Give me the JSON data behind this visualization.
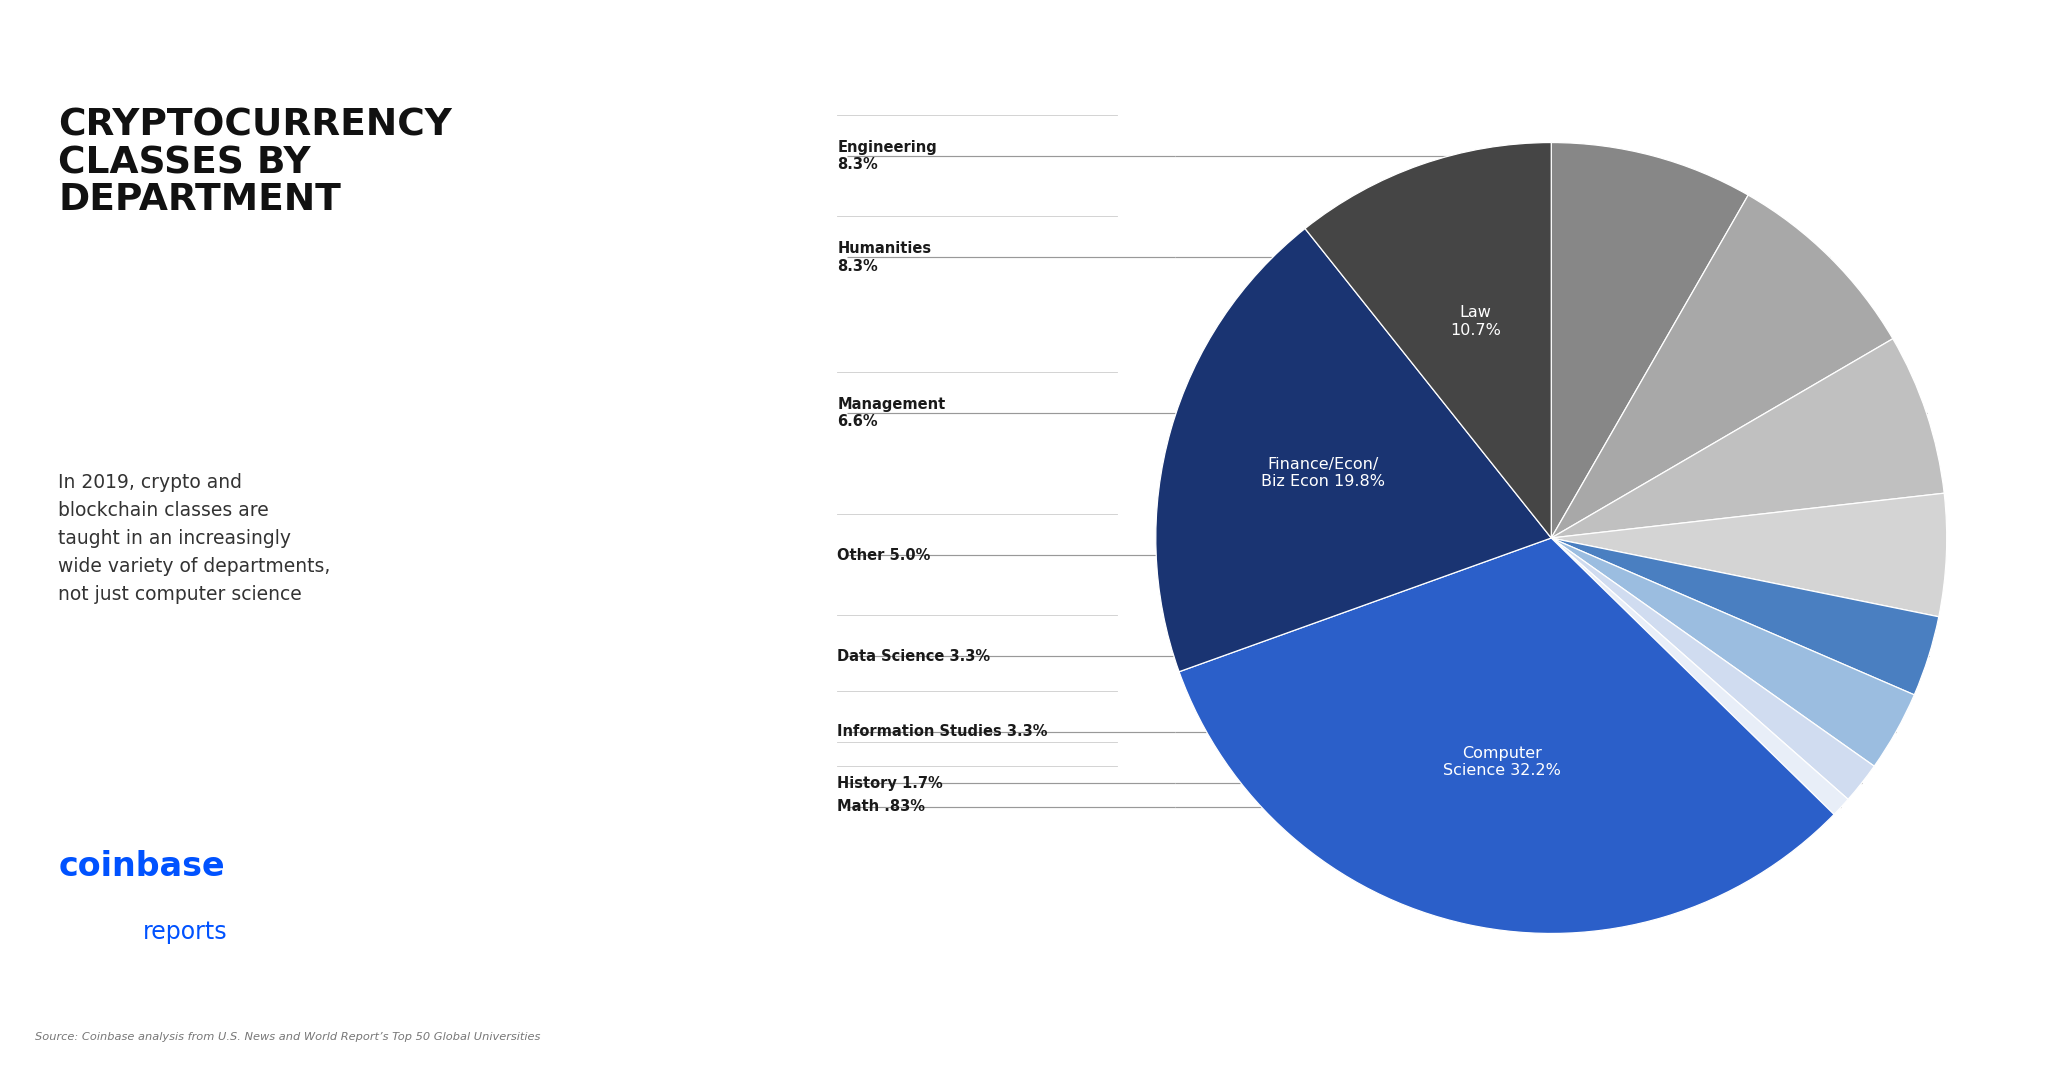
{
  "title": "CRYPTOCURRENCY\nCLASSES BY\nDEPARTMENT",
  "subtitle": "In 2019, crypto and\nblockchain classes are\ntaught in an increasingly\nwide variety of departments,\nnot just computer science",
  "source": "Source: Coinbase analysis from U.S. News and World Report’s Top 50 Global Universities",
  "slices": [
    {
      "name": "Computer\nScience 32.2%",
      "value": 32.2,
      "color": "#2B5FC9",
      "text_color": "white",
      "external": false
    },
    {
      "name": "Finance/Econ/\nBiz Econ 19.8%",
      "value": 19.8,
      "color": "#1A3472",
      "text_color": "white",
      "external": false
    },
    {
      "name": "Law\n10.7%",
      "value": 10.7,
      "color": "#454545",
      "text_color": "white",
      "external": false
    },
    {
      "name": "Engineering\n8.3%",
      "value": 8.3,
      "color": "#878787",
      "text_color": "black",
      "external": true
    },
    {
      "name": "Humanities\n8.3%",
      "value": 8.3,
      "color": "#A8A8A8",
      "text_color": "black",
      "external": true
    },
    {
      "name": "Management\n6.6%",
      "value": 6.6,
      "color": "#C0C0C0",
      "text_color": "black",
      "external": true
    },
    {
      "name": "Other 5.0%",
      "value": 5.0,
      "color": "#D4D4D4",
      "text_color": "black",
      "external": true
    },
    {
      "name": "Data Science 3.3%",
      "value": 3.3,
      "color": "#4A7FC1",
      "text_color": "black",
      "external": true
    },
    {
      "name": "Information Studies 3.3%",
      "value": 3.3,
      "color": "#9BBDE0",
      "text_color": "black",
      "external": true
    },
    {
      "name": "History 1.7%",
      "value": 1.7,
      "color": "#D0DCF0",
      "text_color": "black",
      "external": true
    },
    {
      "name": "Math .83%",
      "value": 0.83,
      "color": "#E8EEF8",
      "text_color": "black",
      "external": true
    }
  ],
  "bg_color": "#FFFFFF",
  "border_color": "#CCCCCC",
  "coinbase_color": "#0052FF",
  "line_color": "#CCCCCC",
  "label_line_color": "#999999"
}
